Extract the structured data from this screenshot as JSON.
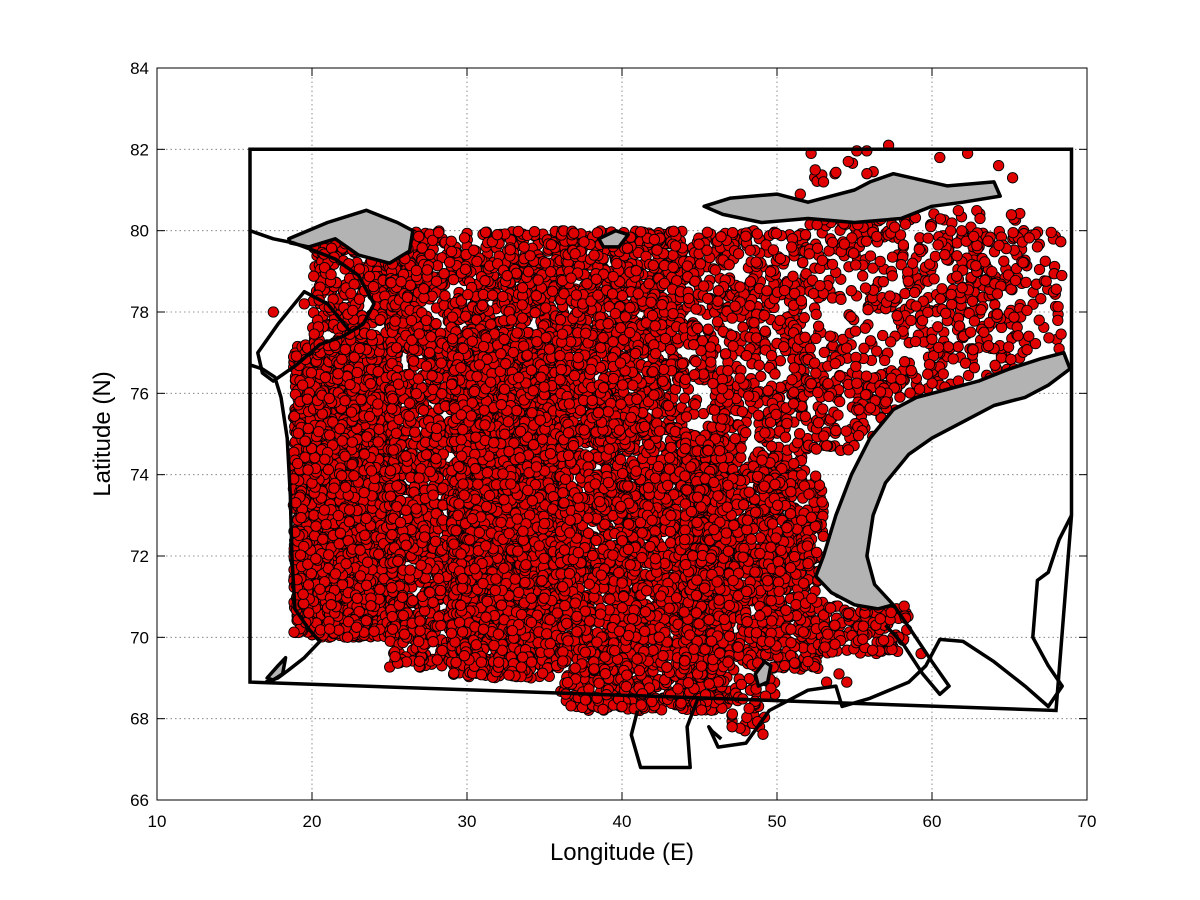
{
  "chart_data": {
    "type": "scatter",
    "title": "",
    "xlabel": "Longitude (E)",
    "ylabel": "Latitude (N)",
    "xlim": [
      10,
      70
    ],
    "ylim": [
      66,
      84
    ],
    "xticks": [
      10,
      20,
      30,
      40,
      50,
      60,
      70
    ],
    "yticks": [
      66,
      68,
      70,
      72,
      74,
      76,
      78,
      80,
      82,
      84
    ],
    "grid": true,
    "marker": {
      "shape": "circle",
      "fill": "#e00000",
      "edge": "#000000"
    },
    "colors": {
      "land": "#b3b3b3",
      "outline": "#000000"
    },
    "boundary": [
      [
        16,
        82
      ],
      [
        69,
        82
      ],
      [
        69,
        73
      ],
      [
        68,
        68.2
      ],
      [
        16,
        68.9
      ],
      [
        16,
        80
      ]
    ],
    "land_polygons": [
      [
        [
          18.5,
          79.8
        ],
        [
          21,
          80.2
        ],
        [
          23.5,
          80.5
        ],
        [
          25.5,
          80.2
        ],
        [
          26.5,
          80.0
        ],
        [
          26.3,
          79.5
        ],
        [
          25,
          79.2
        ],
        [
          23,
          79.4
        ],
        [
          21.5,
          79.8
        ],
        [
          19.8,
          79.6
        ],
        [
          18.6,
          79.7
        ]
      ],
      [
        [
          45.3,
          80.6
        ],
        [
          47,
          80.8
        ],
        [
          50,
          80.9
        ],
        [
          52,
          80.7
        ],
        [
          55,
          81.0
        ],
        [
          56,
          81.2
        ],
        [
          57.5,
          81.4
        ],
        [
          61,
          81.1
        ],
        [
          64,
          81.2
        ],
        [
          64.4,
          80.85
        ],
        [
          62,
          80.7
        ],
        [
          60,
          80.6
        ],
        [
          58,
          80.3
        ],
        [
          55,
          80.2
        ],
        [
          52,
          80.3
        ],
        [
          49,
          80.2
        ],
        [
          46.5,
          80.4
        ],
        [
          45.3,
          80.6
        ]
      ],
      [
        [
          52.5,
          71.5
        ],
        [
          53,
          72
        ],
        [
          53.8,
          73
        ],
        [
          54.8,
          74
        ],
        [
          56,
          74.9
        ],
        [
          57.5,
          75.6
        ],
        [
          59,
          75.9
        ],
        [
          61,
          76.1
        ],
        [
          63,
          76.3
        ],
        [
          65,
          76.6
        ],
        [
          67,
          76.85
        ],
        [
          68.5,
          77.0
        ],
        [
          68.9,
          76.6
        ],
        [
          67.5,
          76.2
        ],
        [
          66,
          75.9
        ],
        [
          64,
          75.7
        ],
        [
          62,
          75.3
        ],
        [
          60,
          74.9
        ],
        [
          58.5,
          74.5
        ],
        [
          57,
          73.8
        ],
        [
          56.2,
          73.0
        ],
        [
          55.8,
          72.0
        ],
        [
          56.3,
          71.3
        ],
        [
          57.5,
          70.8
        ],
        [
          56.5,
          70.7
        ],
        [
          55,
          70.8
        ],
        [
          53.5,
          71.1
        ],
        [
          52.5,
          71.5
        ]
      ],
      [
        [
          17.1,
          69.0
        ],
        [
          17.8,
          69.3
        ],
        [
          18.3,
          69.5
        ],
        [
          18.1,
          69.1
        ],
        [
          17.5,
          68.95
        ],
        [
          17.1,
          69.0
        ]
      ],
      [
        [
          48.6,
          69.1
        ],
        [
          49.2,
          69.4
        ],
        [
          49.6,
          69.3
        ],
        [
          49.4,
          68.9
        ],
        [
          48.8,
          68.8
        ],
        [
          48.6,
          69.1
        ]
      ],
      [
        [
          38.5,
          79.8
        ],
        [
          39.6,
          80.0
        ],
        [
          40.4,
          79.9
        ],
        [
          39.8,
          79.6
        ],
        [
          38.8,
          79.6
        ],
        [
          38.5,
          79.8
        ]
      ]
    ],
    "coastlines": [
      [
        [
          16,
          80
        ],
        [
          17.5,
          79.8
        ],
        [
          18.8,
          79.7
        ],
        [
          20.2,
          79.5
        ],
        [
          21.5,
          79.3
        ],
        [
          23,
          78.9
        ],
        [
          24,
          78.2
        ],
        [
          23.3,
          77.7
        ],
        [
          22,
          77.4
        ],
        [
          20.5,
          77.2
        ],
        [
          19,
          76.7
        ],
        [
          17.5,
          76.3
        ],
        [
          16.8,
          76.5
        ],
        [
          16.5,
          77.0
        ],
        [
          17.8,
          77.7
        ],
        [
          19.5,
          78.5
        ],
        [
          21,
          78.2
        ],
        [
          22.5,
          77.5
        ]
      ],
      [
        [
          16,
          76.7
        ],
        [
          16.8,
          76.6
        ],
        [
          17.6,
          76.4
        ],
        [
          18,
          75.9
        ],
        [
          18.4,
          74.9
        ],
        [
          18.6,
          73.5
        ],
        [
          18.7,
          72.0
        ],
        [
          18.9,
          70.7
        ],
        [
          19.8,
          70.2
        ],
        [
          20.5,
          69.9
        ],
        [
          19.5,
          69.5
        ],
        [
          18.5,
          69.2
        ],
        [
          17.8,
          69.0
        ],
        [
          17.0,
          68.9
        ]
      ],
      [
        [
          41.0,
          68.2
        ],
        [
          40.6,
          67.6
        ],
        [
          41.2,
          66.8
        ],
        [
          44.4,
          66.8
        ],
        [
          44.2,
          67.8
        ],
        [
          44.9,
          68.5
        ]
      ],
      [
        [
          46.4,
          67.5
        ],
        [
          45.8,
          67.7
        ],
        [
          45.6,
          67.8
        ],
        [
          46.2,
          67.3
        ],
        [
          48.0,
          67.4
        ],
        [
          49.5,
          68.2
        ],
        [
          52.0,
          68.7
        ],
        [
          53.8,
          68.8
        ],
        [
          54.2,
          68.3
        ],
        [
          56,
          68.5
        ],
        [
          58.5,
          68.9
        ],
        [
          59.6,
          69.3
        ],
        [
          60.5,
          69.95
        ],
        [
          62,
          69.9
        ],
        [
          64,
          69.4
        ],
        [
          66,
          68.8
        ],
        [
          67.5,
          68.3
        ],
        [
          68.4,
          68.8
        ],
        [
          67.5,
          69.3
        ],
        [
          66.5,
          70.0
        ],
        [
          66.8,
          71.4
        ],
        [
          67.5,
          71.6
        ],
        [
          68.2,
          72.4
        ],
        [
          69,
          73
        ]
      ],
      [
        [
          57.5,
          70.8
        ],
        [
          58.6,
          70.2
        ],
        [
          60,
          69.4
        ],
        [
          61.1,
          68.8
        ],
        [
          60.5,
          68.6
        ],
        [
          59.4,
          69.1
        ],
        [
          58.2,
          69.8
        ],
        [
          57.0,
          70.3
        ]
      ]
    ],
    "point_regions": [
      {
        "lon": [
          18.8,
          25.5
        ],
        "lat": [
          70.0,
          77.2
        ],
        "count": 2600
      },
      {
        "lon": [
          20.0,
          27.0
        ],
        "lat": [
          77.0,
          79.8
        ],
        "count": 380
      },
      {
        "lon": [
          25.0,
          36.0
        ],
        "lat": [
          69.2,
          80.0
        ],
        "count": 2600
      },
      {
        "lon": [
          29.0,
          36.0
        ],
        "lat": [
          69.0,
          77.5
        ],
        "count": 2200
      },
      {
        "lon": [
          36.0,
          47.0
        ],
        "lat": [
          68.2,
          75.0
        ],
        "count": 2200
      },
      {
        "lon": [
          36.0,
          44.0
        ],
        "lat": [
          75.0,
          80.0
        ],
        "count": 1100
      },
      {
        "lon": [
          44.0,
          52.0
        ],
        "lat": [
          74.0,
          80.0
        ],
        "count": 650
      },
      {
        "lon": [
          44.0,
          53.0
        ],
        "lat": [
          69.2,
          74.0
        ],
        "count": 1100
      },
      {
        "lon": [
          52.0,
          66.0
        ],
        "lat": [
          76.0,
          80.5
        ],
        "count": 480
      },
      {
        "lon": [
          52.0,
          58.0
        ],
        "lat": [
          74.5,
          76.5
        ],
        "count": 120
      },
      {
        "lon": [
          53.0,
          58.5
        ],
        "lat": [
          69.6,
          70.8
        ],
        "count": 120
      },
      {
        "lon": [
          47.0,
          50.0
        ],
        "lat": [
          67.6,
          69.0
        ],
        "count": 40
      },
      {
        "lon": [
          52.0,
          58.0
        ],
        "lat": [
          80.0,
          82.0
        ],
        "count": 25
      },
      {
        "lon": [
          60.0,
          68.5
        ],
        "lat": [
          77.0,
          80.0
        ],
        "count": 150
      }
    ],
    "points": [
      [
        57.2,
        82.1
      ],
      [
        52.2,
        81.9
      ],
      [
        60.5,
        81.8
      ],
      [
        62.3,
        81.9
      ],
      [
        54.6,
        81.7
      ],
      [
        64.3,
        81.6
      ],
      [
        53.0,
        81.2
      ],
      [
        65.2,
        81.3
      ],
      [
        55.8,
        81.4
      ],
      [
        51.5,
        80.9
      ],
      [
        58.9,
        80.6
      ],
      [
        63.1,
        80.3
      ],
      [
        21.0,
        79.8
      ],
      [
        17.5,
        78.0
      ],
      [
        19.5,
        78.2
      ],
      [
        66.8,
        79.6
      ],
      [
        68.2,
        77.1
      ],
      [
        63.8,
        76.2
      ],
      [
        65.3,
        76.6
      ],
      [
        54.0,
        69.1
      ],
      [
        54.5,
        68.9
      ],
      [
        53.2,
        68.9
      ],
      [
        59.3,
        69.6
      ],
      [
        55.0,
        71.0
      ],
      [
        54.0,
        71.1
      ],
      [
        47.1,
        67.8
      ],
      [
        40.0,
        68.3
      ],
      [
        38.4,
        68.5
      ],
      [
        29.0,
        70.1
      ],
      [
        26.5,
        70.9
      ],
      [
        25.2,
        70.2
      ],
      [
        22.3,
        70.0
      ]
    ]
  }
}
